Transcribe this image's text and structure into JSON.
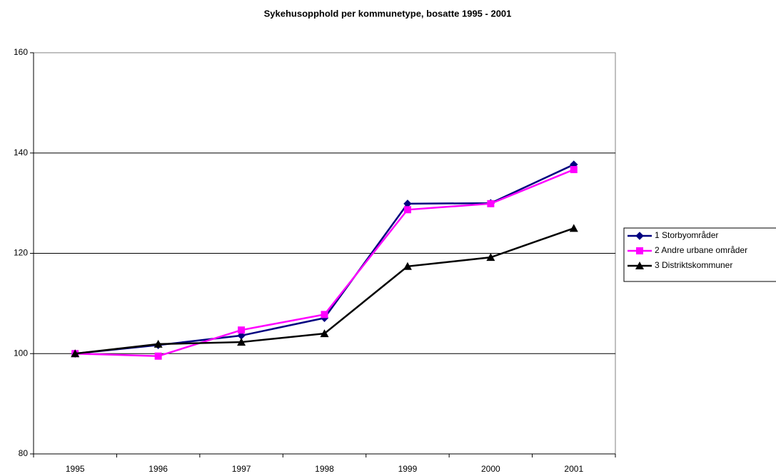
{
  "chart_data": {
    "type": "line",
    "title": "Sykehusopphold per kommunetype, bosatte 1995 - 2001",
    "categories": [
      "1995",
      "1996",
      "1997",
      "1998",
      "1999",
      "2000",
      "2001"
    ],
    "series": [
      {
        "name": "1  Storbyområder",
        "color": "#000080",
        "marker": "diamond",
        "values": [
          100,
          101.7,
          103.6,
          107.1,
          129.9,
          130.0,
          137.7
        ]
      },
      {
        "name": "2  Andre urbane områder",
        "color": "#ff00ff",
        "marker": "square",
        "values": [
          100,
          99.5,
          104.7,
          107.8,
          128.7,
          129.9,
          136.7
        ]
      },
      {
        "name": "3  Distriktskommuner",
        "color": "#000000",
        "marker": "triangle",
        "values": [
          100,
          101.9,
          102.3,
          104.0,
          117.4,
          119.2,
          125.0
        ]
      }
    ],
    "ylim": [
      80,
      160
    ],
    "yticks": [
      80,
      100,
      120,
      140,
      160
    ],
    "grid": true,
    "legend": "right"
  }
}
